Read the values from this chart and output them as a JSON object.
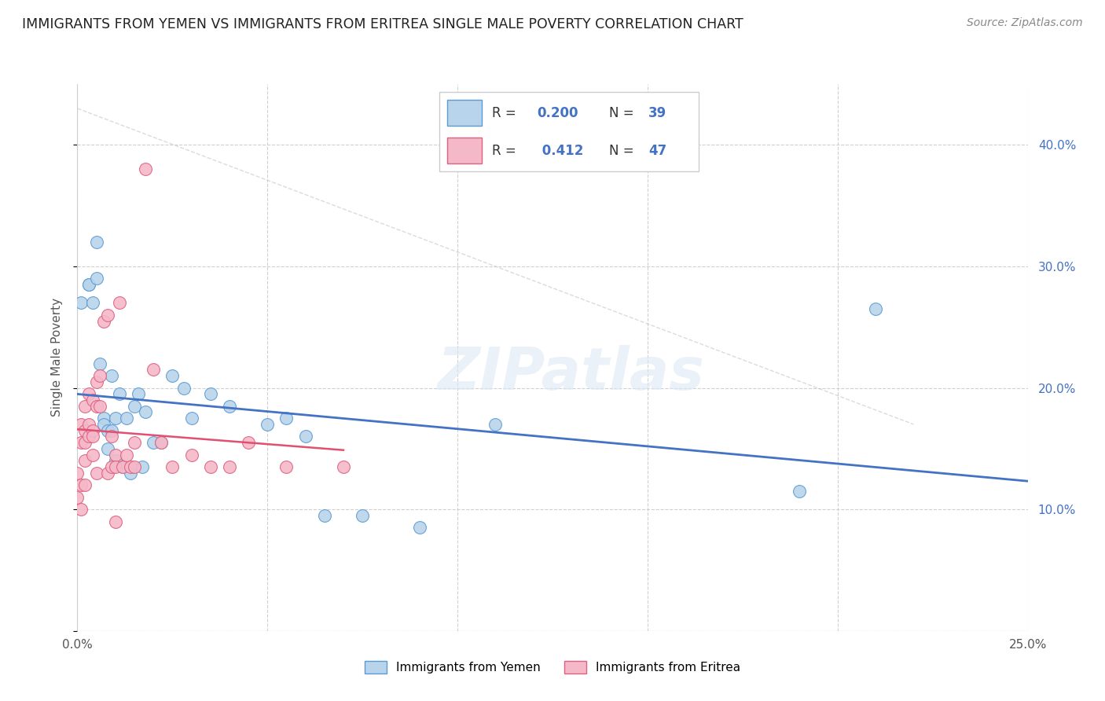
{
  "title": "IMMIGRANTS FROM YEMEN VS IMMIGRANTS FROM ERITREA SINGLE MALE POVERTY CORRELATION CHART",
  "source": "Source: ZipAtlas.com",
  "ylabel": "Single Male Poverty",
  "xlim": [
    0.0,
    0.25
  ],
  "ylim": [
    0.0,
    0.45
  ],
  "xticks": [
    0.0,
    0.05,
    0.1,
    0.15,
    0.2,
    0.25
  ],
  "yticks": [
    0.0,
    0.1,
    0.2,
    0.3,
    0.4
  ],
  "xticklabels_show": [
    "0.0%",
    "25.0%"
  ],
  "yticklabels_right": [
    "10.0%",
    "20.0%",
    "30.0%",
    "40.0%"
  ],
  "legend_R1": "0.200",
  "legend_N1": "39",
  "legend_R2": "0.412",
  "legend_N2": "47",
  "color_yemen_fill": "#b8d4ea",
  "color_yemen_edge": "#5b9bd5",
  "color_eritrea_fill": "#f4b8c8",
  "color_eritrea_edge": "#e06080",
  "color_trendline_yemen": "#4472c4",
  "color_trendline_eritrea": "#e05070",
  "watermark": "ZIPatlas",
  "grid_color": "#d0d0d0",
  "yemen_x": [
    0.001,
    0.003,
    0.003,
    0.004,
    0.005,
    0.005,
    0.006,
    0.007,
    0.007,
    0.008,
    0.008,
    0.009,
    0.009,
    0.01,
    0.01,
    0.011,
    0.012,
    0.013,
    0.014,
    0.015,
    0.016,
    0.017,
    0.018,
    0.02,
    0.022,
    0.025,
    0.028,
    0.03,
    0.035,
    0.04,
    0.05,
    0.055,
    0.06,
    0.065,
    0.075,
    0.09,
    0.11,
    0.19,
    0.21
  ],
  "yemen_y": [
    0.27,
    0.285,
    0.285,
    0.27,
    0.29,
    0.32,
    0.22,
    0.175,
    0.17,
    0.15,
    0.165,
    0.165,
    0.21,
    0.14,
    0.175,
    0.195,
    0.135,
    0.175,
    0.13,
    0.185,
    0.195,
    0.135,
    0.18,
    0.155,
    0.155,
    0.21,
    0.2,
    0.175,
    0.195,
    0.185,
    0.17,
    0.175,
    0.16,
    0.095,
    0.095,
    0.085,
    0.17,
    0.115,
    0.265
  ],
  "eritrea_x": [
    0.0,
    0.0,
    0.001,
    0.001,
    0.001,
    0.001,
    0.002,
    0.002,
    0.002,
    0.002,
    0.002,
    0.003,
    0.003,
    0.003,
    0.004,
    0.004,
    0.004,
    0.004,
    0.005,
    0.005,
    0.005,
    0.006,
    0.006,
    0.007,
    0.008,
    0.008,
    0.009,
    0.009,
    0.01,
    0.01,
    0.01,
    0.011,
    0.012,
    0.013,
    0.014,
    0.015,
    0.015,
    0.018,
    0.02,
    0.022,
    0.025,
    0.03,
    0.035,
    0.04,
    0.045,
    0.055,
    0.07
  ],
  "eritrea_y": [
    0.13,
    0.11,
    0.17,
    0.155,
    0.12,
    0.1,
    0.185,
    0.165,
    0.155,
    0.14,
    0.12,
    0.195,
    0.17,
    0.16,
    0.19,
    0.165,
    0.16,
    0.145,
    0.205,
    0.185,
    0.13,
    0.21,
    0.185,
    0.255,
    0.26,
    0.13,
    0.135,
    0.16,
    0.145,
    0.135,
    0.09,
    0.27,
    0.135,
    0.145,
    0.135,
    0.155,
    0.135,
    0.38,
    0.215,
    0.155,
    0.135,
    0.145,
    0.135,
    0.135,
    0.155,
    0.135,
    0.135
  ]
}
